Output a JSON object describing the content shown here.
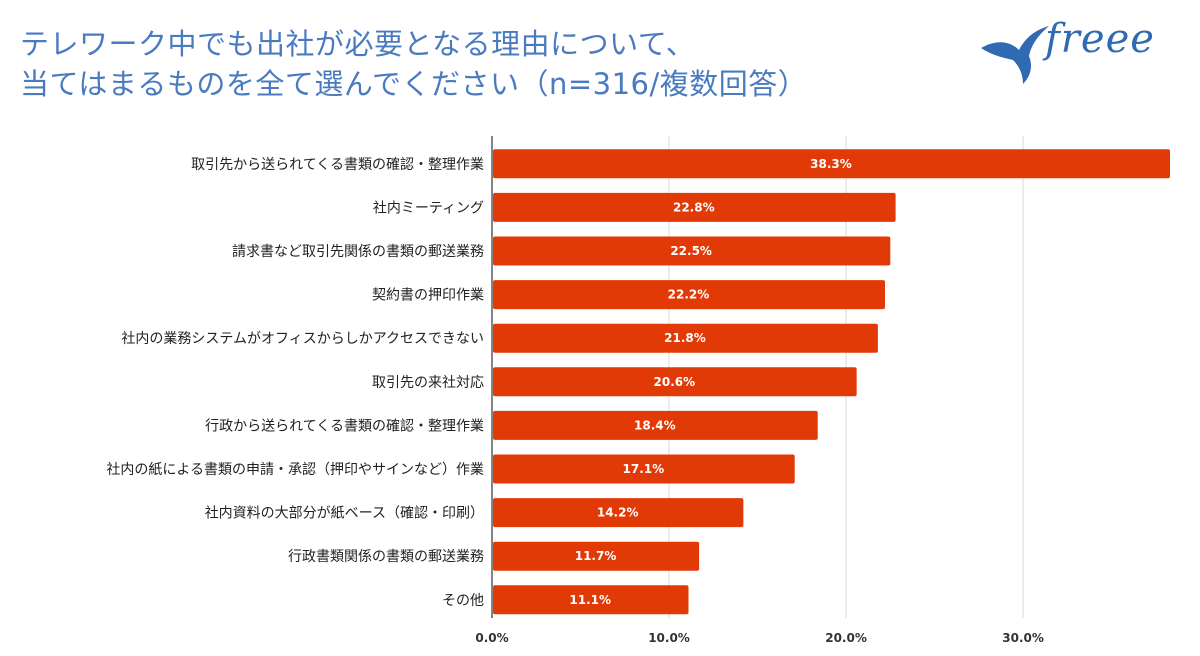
{
  "header": {
    "title_line1": "テレワーク中でも出社が必要となる理由について、",
    "title_line2": "当てはまるものを全て選んでください（n=316/複数回答）",
    "logo_text": "freee"
  },
  "colors": {
    "bar": "#e23a06",
    "title": "#4a7bc1",
    "logo": "#2f6ab3",
    "grid": "#d9d9d9",
    "axis": "#333333"
  },
  "chart_data": {
    "type": "bar",
    "orientation": "horizontal",
    "categories": [
      "取引先から送られてくる書類の確認・整理作業",
      "社内ミーティング",
      "請求書など取引先関係の書類の郵送業務",
      "契約書の押印作業",
      "社内の業務システムがオフィスからしかアクセスできない",
      "取引先の来社対応",
      "行政から送られてくる書類の確認・整理作業",
      "社内の紙による書類の申請・承認（押印やサインなど）作業",
      "社内資料の大部分が紙ベース（確認・印刷）",
      "行政書類関係の書類の郵送業務",
      "その他"
    ],
    "values": [
      38.3,
      22.8,
      22.5,
      22.2,
      21.8,
      20.6,
      18.4,
      17.1,
      14.2,
      11.7,
      11.1
    ],
    "value_labels": [
      "38.3%",
      "22.8%",
      "22.5%",
      "22.2%",
      "21.8%",
      "20.6%",
      "18.4%",
      "17.1%",
      "14.2%",
      "11.7%",
      "11.1%"
    ],
    "xticks": [
      0,
      10,
      20,
      30
    ],
    "xtick_labels": [
      "0.0%",
      "10.0%",
      "20.0%",
      "30.0%"
    ],
    "xlim": [
      0,
      38.3
    ],
    "grid": true,
    "legend": "none"
  }
}
